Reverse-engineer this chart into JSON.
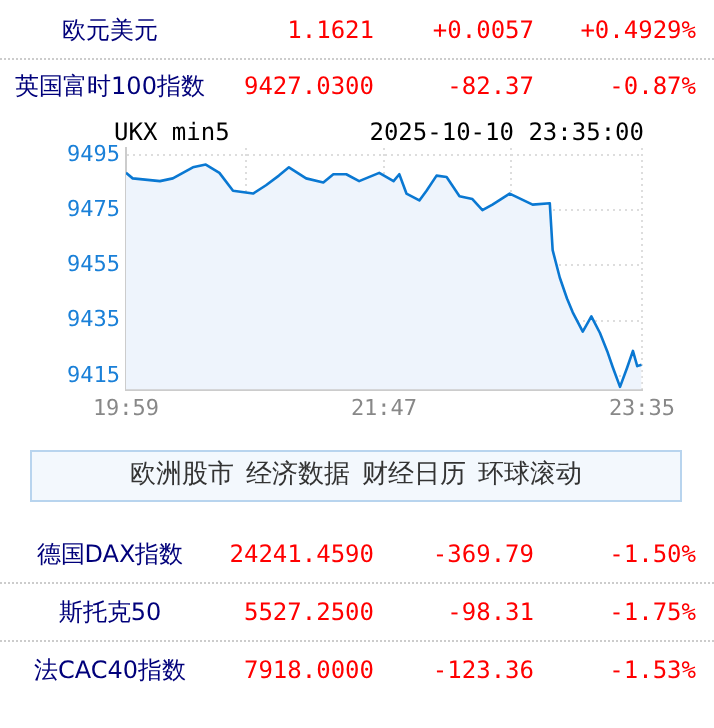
{
  "chart_data": {
    "type": "area",
    "title": "UKX min5",
    "subtitle": "2025-10-10 23:35:00",
    "x": [
      19.9833,
      20.03,
      20.22,
      20.31,
      20.45,
      20.54,
      20.635,
      20.73,
      20.87,
      20.96,
      21.05,
      21.12,
      21.24,
      21.36,
      21.43,
      21.52,
      21.61,
      21.75,
      21.85,
      21.89,
      21.94,
      22.03,
      22.08,
      22.15,
      22.22,
      22.31,
      22.4,
      22.47,
      22.54,
      22.66,
      22.78,
      22.82,
      22.94,
      22.96,
      23.01,
      23.06,
      23.1,
      23.17,
      23.23,
      23.29,
      23.34,
      23.38,
      23.43,
      23.48,
      23.52,
      23.55,
      23.58
    ],
    "series": [
      {
        "color": "#0a78d2",
        "values": [
          9488.5,
          9486.5,
          9485.5,
          9486.5,
          9490.5,
          9491.5,
          9488.5,
          9482,
          9481,
          9484,
          9487.5,
          9490.5,
          9486.5,
          9485,
          9488,
          9488,
          9485.5,
          9488.5,
          9485.5,
          9488,
          9481,
          9478.5,
          9482,
          9487.5,
          9487,
          9480,
          9479,
          9475,
          9477,
          9481,
          9478,
          9477,
          9477.5,
          9460.5,
          9450.5,
          9443,
          9438,
          9431,
          9436.5,
          9430.5,
          9424,
          9418,
          9411,
          9418,
          9424,
          9418.5,
          9419
        ]
      }
    ],
    "xlim": [
      19.9833,
      23.5833
    ],
    "xticks": [
      {
        "value": 19.9833,
        "label": "19:59"
      },
      {
        "value": 20.82,
        "label": null
      },
      {
        "value": 21.7833,
        "label": "21:47"
      },
      {
        "value": 22.67,
        "label": null
      },
      {
        "value": 23.5833,
        "label": "23:35"
      }
    ],
    "ylim": [
      9410,
      9497.5
    ],
    "yticks": [
      9415,
      9435,
      9455,
      9475,
      9495
    ],
    "grid": true,
    "annotations": [
      "欧元美元",
      "1.1621",
      "+0.0057",
      "+0.4929%",
      "英国富时100指数",
      "9427.0300",
      "-82.37",
      "-0.87%",
      "欧洲股市",
      "经济数据",
      "财经日历",
      "环球滚动",
      "德国DAX指数",
      "24241.4590",
      "-369.79",
      "-1.50%",
      "斯托克50",
      "5527.2500",
      "-98.31",
      "-1.75%",
      "法CAC40指数",
      "7918.0000",
      "-123.36",
      "-1.53%"
    ]
  }
}
